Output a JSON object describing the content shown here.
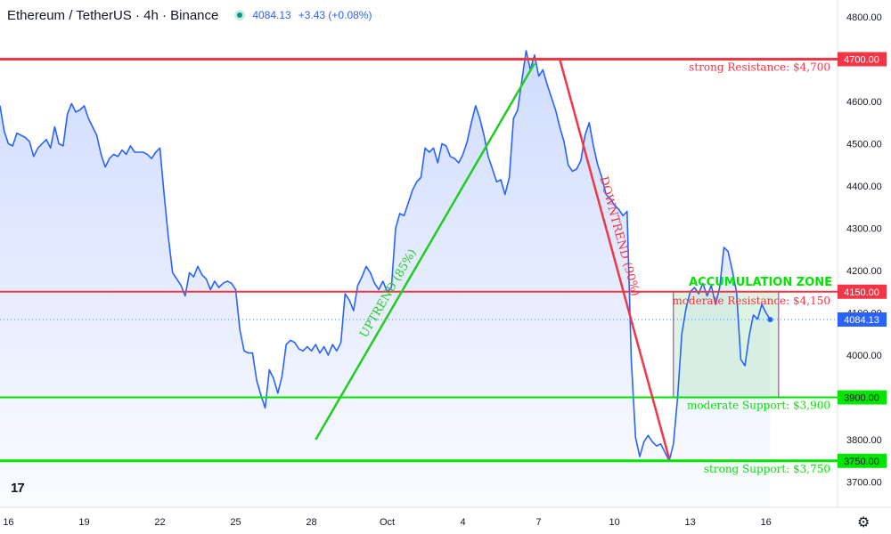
{
  "header": {
    "title": "Ethereum / TetherUS · 4h · Binance",
    "price": "4084.13",
    "change": "+3.43 (+0.08%)"
  },
  "colors": {
    "price_line": "#2962ff",
    "resistance": "#f23645",
    "support": "#00e600",
    "uptrend": "#22cc22",
    "downtrend": "#f23645",
    "zone_border": "#9c27b0",
    "zone_fill": "#c8ecd0"
  },
  "chart_data": {
    "type": "area",
    "symbol": "Ethereum / TetherUS",
    "timeframe": "4h",
    "exchange": "Binance",
    "x_ticks": [
      {
        "label": "16",
        "i": 2
      },
      {
        "label": "19",
        "i": 20
      },
      {
        "label": "22",
        "i": 38
      },
      {
        "label": "25",
        "i": 56
      },
      {
        "label": "28",
        "i": 74
      },
      {
        "label": "Oct",
        "i": 92
      },
      {
        "label": "4",
        "i": 110
      },
      {
        "label": "7",
        "i": 128
      },
      {
        "label": "10",
        "i": 146
      },
      {
        "label": "13",
        "i": 164
      },
      {
        "label": "16",
        "i": 182
      }
    ],
    "y_ticks": [
      3700,
      3800,
      3900,
      4000,
      4100,
      4200,
      4300,
      4400,
      4500,
      4600,
      4700,
      4800
    ],
    "ylim": [
      3640,
      4840
    ],
    "xlim": [
      0,
      199
    ],
    "values": [
      4590,
      4530,
      4500,
      4495,
      4525,
      4520,
      4515,
      4505,
      4470,
      4490,
      4500,
      4510,
      4490,
      4540,
      4500,
      4495,
      4570,
      4595,
      4575,
      4580,
      4590,
      4560,
      4540,
      4520,
      4475,
      4445,
      4465,
      4475,
      4470,
      4485,
      4475,
      4495,
      4480,
      4480,
      4480,
      4475,
      4465,
      4480,
      4490,
      4380,
      4280,
      4195,
      4180,
      4165,
      4140,
      4195,
      4185,
      4210,
      4190,
      4180,
      4155,
      4175,
      4160,
      4170,
      4175,
      4170,
      4155,
      4060,
      4010,
      4005,
      4005,
      3940,
      3905,
      3875,
      3965,
      3945,
      3910,
      3950,
      4025,
      4035,
      4030,
      4015,
      4010,
      4020,
      4010,
      4025,
      4005,
      4020,
      4000,
      4025,
      4010,
      4030,
      4145,
      4130,
      4105,
      4165,
      4185,
      4210,
      4195,
      4170,
      4155,
      4175,
      4150,
      4160,
      4300,
      4335,
      4330,
      4360,
      4390,
      4410,
      4420,
      4490,
      4480,
      4490,
      4455,
      4500,
      4495,
      4470,
      4465,
      4455,
      4475,
      4505,
      4550,
      4590,
      4560,
      4520,
      4470,
      4440,
      4410,
      4415,
      4380,
      4420,
      4560,
      4580,
      4650,
      4720,
      4675,
      4710,
      4660,
      4675,
      4640,
      4610,
      4580,
      4540,
      4505,
      4450,
      4435,
      4440,
      4460,
      4520,
      4550,
      4495,
      4450,
      4420,
      4380,
      4370,
      4355,
      4345,
      4330,
      4340,
      3990,
      3805,
      3760,
      3795,
      3810,
      3795,
      3785,
      3790,
      3770,
      3750,
      3790,
      3900,
      4050,
      4110,
      4150,
      4160,
      4145,
      4170,
      4140,
      4165,
      4120,
      4160,
      4255,
      4245,
      4200,
      4150,
      3990,
      3975,
      4045,
      4095,
      4085,
      4120,
      4100,
      4084
    ],
    "current_price": 4084.13,
    "levels": [
      {
        "price": 4700,
        "tag": "4700.00",
        "label": "strong Resistance: $4,700",
        "kind": "resistance",
        "strength": "strong"
      },
      {
        "price": 4150,
        "tag": "4150.00",
        "label": "moderate Resistance: $4,150",
        "kind": "resistance",
        "strength": "moderate"
      },
      {
        "price": 3900,
        "tag": "3900.00",
        "label": "moderate Support: $3,900",
        "kind": "support",
        "strength": "moderate"
      },
      {
        "price": 3750,
        "tag": "3750.00",
        "label": "strong Support: $3,750",
        "kind": "support",
        "strength": "strong"
      }
    ],
    "trendlines": [
      {
        "label": "UPTREND (85%)",
        "kind": "uptrend",
        "from": {
          "i": 75,
          "price": 3800
        },
        "to": {
          "i": 127,
          "price": 4690
        }
      },
      {
        "label": "DOWNTREND (90%)",
        "kind": "downtrend",
        "from": {
          "i": 133,
          "price": 4700
        },
        "to": {
          "i": 159,
          "price": 3755
        }
      }
    ],
    "zone": {
      "label": "ACCUMULATION ZONE",
      "i_start": 160,
      "i_end": 185,
      "price_low": 3900,
      "price_high": 4150
    }
  }
}
